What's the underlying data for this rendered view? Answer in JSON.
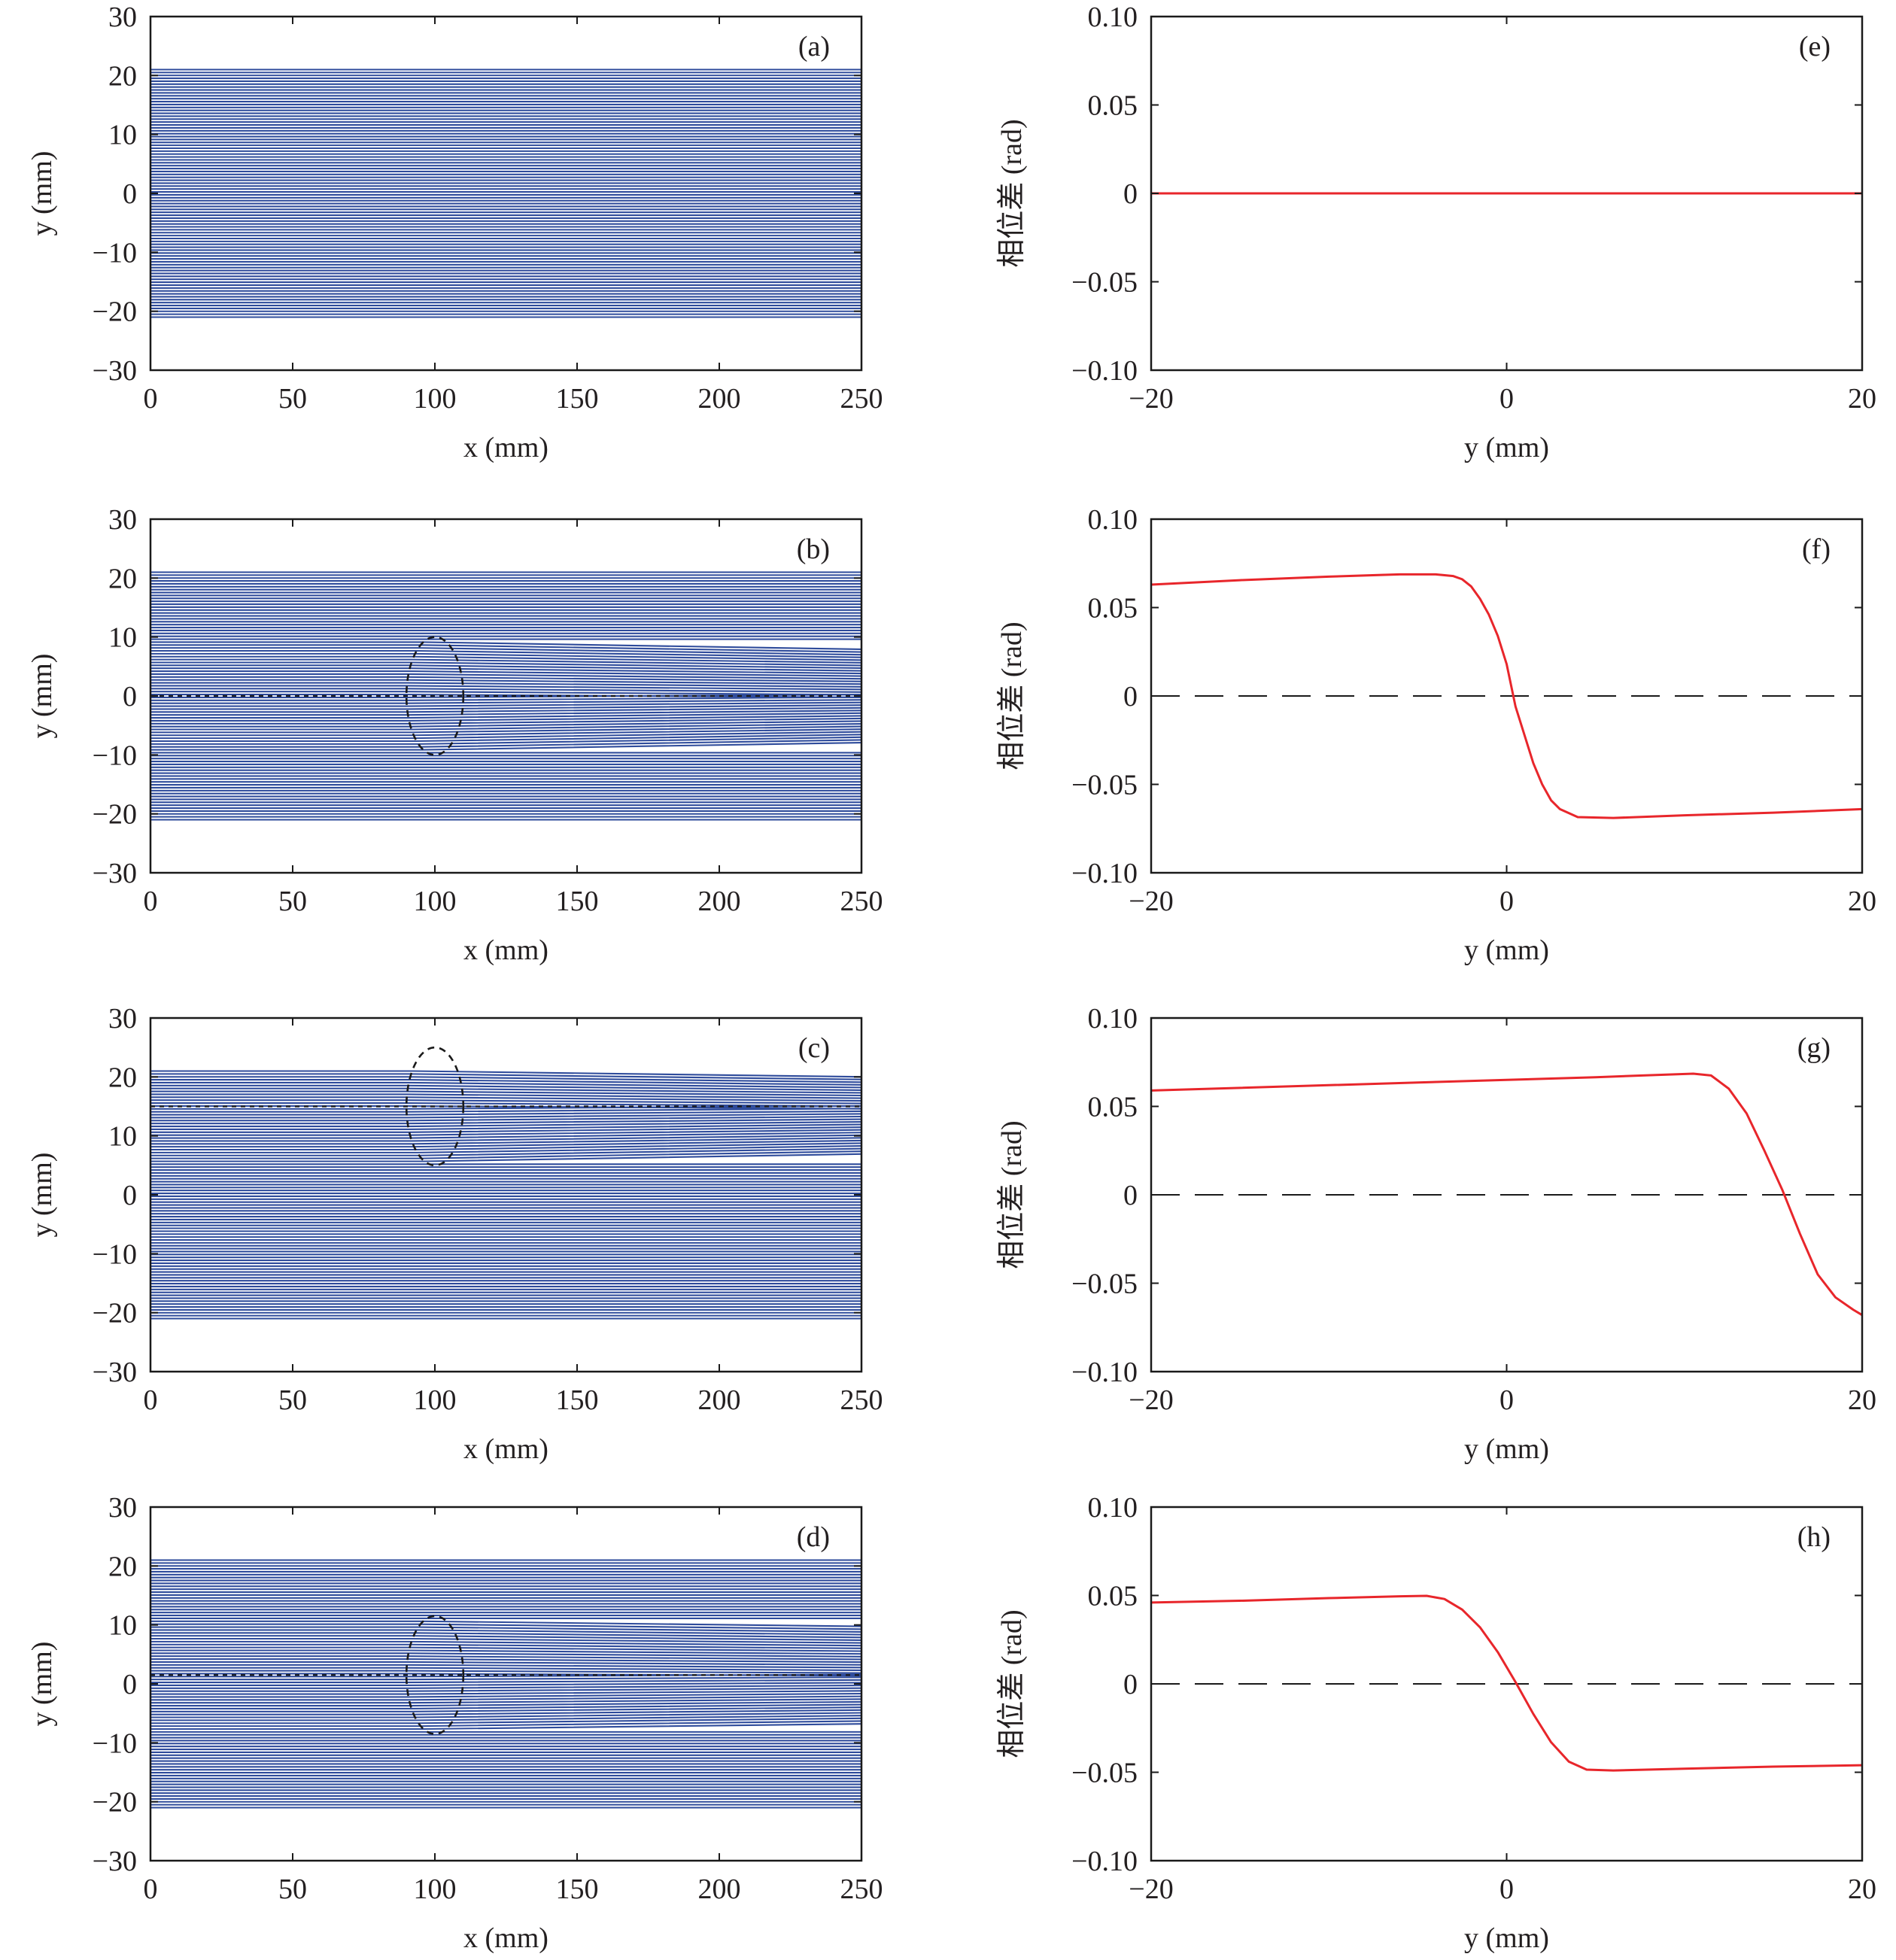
{
  "chart_data": [
    {
      "panel": "(a)",
      "type": "line",
      "xlabel": "x (mm)",
      "ylabel": "y (mm)",
      "xlim": [
        0,
        250
      ],
      "ylim": [
        -30,
        30
      ],
      "xticks": [
        "0",
        "50",
        "100",
        "150",
        "200",
        "250"
      ],
      "yticks": [
        "30",
        "20",
        "10",
        "0",
        "−10",
        "−20",
        "−30"
      ],
      "grid": false,
      "streamlines": {
        "y_range": [
          -21,
          21
        ],
        "count": 86,
        "color": "#2e4b9b"
      },
      "deflection": null
    },
    {
      "panel": "(b)",
      "type": "line",
      "xlabel": "x (mm)",
      "ylabel": "y (mm)",
      "xlim": [
        0,
        250
      ],
      "ylim": [
        -30,
        30
      ],
      "xticks": [
        "0",
        "50",
        "100",
        "150",
        "200",
        "250"
      ],
      "yticks": [
        "30",
        "20",
        "10",
        "0",
        "−10",
        "−20",
        "−30"
      ],
      "grid": false,
      "streamlines": {
        "y_range": [
          -21,
          21
        ],
        "count": 86,
        "color": "#2e4b9b"
      },
      "deflection": {
        "center_x": 100,
        "center_y": 0,
        "radius": 10,
        "angle": 0.07
      },
      "dashed_circle": {
        "cx": 100,
        "cy": 0,
        "r": 10
      },
      "dashed_line_y": 0
    },
    {
      "panel": "(c)",
      "type": "line",
      "xlabel": "x (mm)",
      "ylabel": "y (mm)",
      "xlim": [
        0,
        250
      ],
      "ylim": [
        -30,
        30
      ],
      "xticks": [
        "0",
        "50",
        "100",
        "150",
        "200",
        "250"
      ],
      "yticks": [
        "30",
        "20",
        "10",
        "0",
        "−10",
        "−20",
        "−30"
      ],
      "grid": false,
      "streamlines": {
        "y_range": [
          -21,
          21
        ],
        "count": 86,
        "color": "#2e4b9b"
      },
      "deflection": {
        "center_x": 100,
        "center_y": 15,
        "radius": 10,
        "angle": 0.07
      },
      "dashed_circle": {
        "cx": 100,
        "cy": 15,
        "r": 10
      },
      "dashed_line_y": 15
    },
    {
      "panel": "(d)",
      "type": "line",
      "xlabel": "x (mm)",
      "ylabel": "y (mm)",
      "xlim": [
        0,
        250
      ],
      "ylim": [
        -30,
        30
      ],
      "xticks": [
        "0",
        "50",
        "100",
        "150",
        "200",
        "250"
      ],
      "yticks": [
        "30",
        "20",
        "10",
        "0",
        "−10",
        "−20",
        "−30"
      ],
      "grid": false,
      "streamlines": {
        "y_range": [
          -21,
          21
        ],
        "count": 86,
        "color": "#2e4b9b"
      },
      "deflection": {
        "center_x": 100,
        "center_y": 1.5,
        "radius": 10,
        "angle": 0.05
      },
      "dashed_circle": {
        "cx": 100,
        "cy": 1.5,
        "r": 10
      },
      "dashed_line_y": 1.5
    },
    {
      "panel": "(e)",
      "type": "line",
      "xlabel": "y (mm)",
      "ylabel": "相位差 (rad)",
      "xlim": [
        -20,
        20
      ],
      "ylim": [
        -0.1,
        0.1
      ],
      "xticks": [
        "−20",
        "0",
        "20"
      ],
      "yticks": [
        "0.10",
        "0.05",
        "0",
        "−0.05",
        "−0.10"
      ],
      "grid": false,
      "zero_dashed": false,
      "series": [
        {
          "color": "#e8262b",
          "x": [
            -20,
            20
          ],
          "y": [
            0,
            0
          ]
        }
      ]
    },
    {
      "panel": "(f)",
      "type": "line",
      "xlabel": "y (mm)",
      "ylabel": "相位差 (rad)",
      "xlim": [
        -20,
        20
      ],
      "ylim": [
        -0.1,
        0.1
      ],
      "xticks": [
        "−20",
        "0",
        "20"
      ],
      "yticks": [
        "0.10",
        "0.05",
        "0",
        "−0.05",
        "−0.10"
      ],
      "grid": false,
      "zero_dashed": true,
      "series": [
        {
          "color": "#e8262b",
          "x": [
            -20,
            -15,
            -10,
            -6,
            -4,
            -3,
            -2.5,
            -2,
            -1.5,
            -1,
            -0.5,
            0,
            0.5,
            1,
            1.5,
            2,
            2.5,
            3,
            4,
            6,
            10,
            15,
            20
          ],
          "y": [
            0.063,
            0.0655,
            0.0675,
            0.0688,
            0.0688,
            0.0678,
            0.066,
            0.062,
            0.055,
            0.046,
            0.034,
            0.018,
            -0.006,
            -0.022,
            -0.038,
            -0.05,
            -0.059,
            -0.064,
            -0.0685,
            -0.069,
            -0.0675,
            -0.066,
            -0.064
          ]
        }
      ]
    },
    {
      "panel": "(g)",
      "type": "line",
      "xlabel": "y (mm)",
      "ylabel": "相位差 (rad)",
      "xlim": [
        -20,
        20
      ],
      "ylim": [
        -0.1,
        0.1
      ],
      "xticks": [
        "−20",
        "0",
        "20"
      ],
      "yticks": [
        "0.10",
        "0.05",
        "0",
        "−0.05",
        "−0.10"
      ],
      "grid": false,
      "zero_dashed": true,
      "series": [
        {
          "color": "#e8262b",
          "x": [
            -20,
            -15,
            -10,
            -5,
            0,
            5,
            9,
            10.5,
            11.5,
            12.5,
            13.5,
            14.5,
            15.5,
            16.5,
            17.5,
            18.5,
            19.5,
            20
          ],
          "y": [
            0.059,
            0.0605,
            0.062,
            0.0635,
            0.065,
            0.0665,
            0.068,
            0.0685,
            0.0675,
            0.06,
            0.046,
            0.025,
            0.003,
            -0.022,
            -0.045,
            -0.058,
            -0.065,
            -0.068
          ]
        }
      ]
    },
    {
      "panel": "(h)",
      "type": "line",
      "xlabel": "y (mm)",
      "ylabel": "相位差 (rad)",
      "xlim": [
        -20,
        20
      ],
      "ylim": [
        -0.1,
        0.1
      ],
      "xticks": [
        "−20",
        "0",
        "20"
      ],
      "yticks": [
        "0.10",
        "0.05",
        "0",
        "−0.05",
        "−0.10"
      ],
      "grid": false,
      "zero_dashed": true,
      "series": [
        {
          "color": "#e8262b",
          "x": [
            -20,
            -15,
            -10,
            -6,
            -4.5,
            -3.5,
            -2.5,
            -1.5,
            -0.5,
            0.5,
            1.5,
            2.5,
            3.5,
            4.5,
            6,
            10,
            15,
            20
          ],
          "y": [
            0.046,
            0.047,
            0.0485,
            0.0495,
            0.0498,
            0.048,
            0.042,
            0.032,
            0.018,
            0.001,
            -0.017,
            -0.033,
            -0.044,
            -0.0485,
            -0.049,
            -0.048,
            -0.0468,
            -0.046
          ]
        }
      ]
    }
  ]
}
